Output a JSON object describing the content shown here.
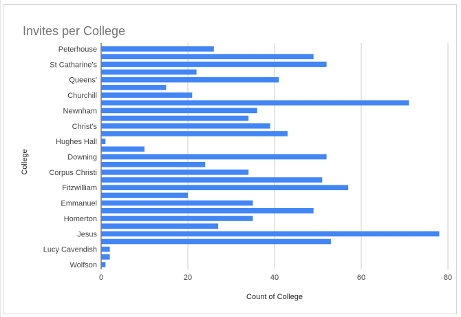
{
  "chart_data": {
    "type": "bar",
    "orientation": "horizontal",
    "title": "Invites per College",
    "xlabel": "Count of College",
    "ylabel": "College",
    "xlim": [
      0,
      80
    ],
    "xticks": [
      "0",
      "20",
      "40",
      "60",
      "80"
    ],
    "grid": true,
    "legend": "none",
    "bar_color": "#4285f4",
    "rows": [
      {
        "label": "Peterhouse",
        "value": 26
      },
      {
        "label": "",
        "value": 49
      },
      {
        "label": "St Catharine's",
        "value": 52
      },
      {
        "label": "",
        "value": 22
      },
      {
        "label": "Queens'",
        "value": 41
      },
      {
        "label": "",
        "value": 15
      },
      {
        "label": "Churchill",
        "value": 21
      },
      {
        "label": "",
        "value": 71
      },
      {
        "label": "Newnham",
        "value": 36
      },
      {
        "label": "",
        "value": 34
      },
      {
        "label": "Christ's",
        "value": 39
      },
      {
        "label": "",
        "value": 43
      },
      {
        "label": "Hughes Hall",
        "value": 1
      },
      {
        "label": "",
        "value": 10
      },
      {
        "label": "Downing",
        "value": 52
      },
      {
        "label": "",
        "value": 24
      },
      {
        "label": "Corpus Christi",
        "value": 34
      },
      {
        "label": "",
        "value": 51
      },
      {
        "label": "Fitzwilliam",
        "value": 57
      },
      {
        "label": "",
        "value": 20
      },
      {
        "label": "Emmanuel",
        "value": 35
      },
      {
        "label": "",
        "value": 49
      },
      {
        "label": "Homerton",
        "value": 35
      },
      {
        "label": "",
        "value": 27
      },
      {
        "label": "Jesus",
        "value": 78
      },
      {
        "label": "",
        "value": 53
      },
      {
        "label": "Lucy Cavendish",
        "value": 2
      },
      {
        "label": "",
        "value": 2
      },
      {
        "label": "Wolfson",
        "value": 1
      }
    ]
  }
}
